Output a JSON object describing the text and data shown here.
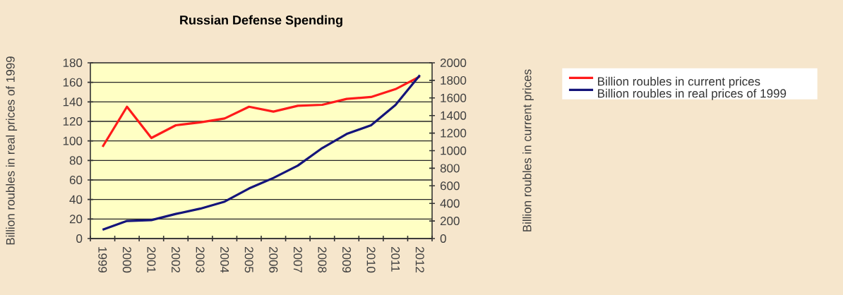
{
  "chart_data": {
    "type": "line",
    "title": "Russian Defense Spending",
    "ylabel": "Billion roubles in real prices of 1999",
    "y2label": "Billion roubles in current prices",
    "categories": [
      "1999",
      "2000",
      "2001",
      "2002",
      "2003",
      "2004",
      "2005",
      "2006",
      "2007",
      "2008",
      "2009",
      "2010",
      "2011",
      "2012"
    ],
    "series": [
      {
        "name": "Billion roubles in current prices",
        "color": "#ff1a1a",
        "values": [
          94,
          135,
          103,
          116,
          119,
          123,
          135,
          130,
          136,
          137,
          143,
          145,
          153,
          166
        ]
      },
      {
        "name": "Billion roubles in real prices of 1999",
        "color": "#14147a",
        "axis": "y2",
        "values": [
          100,
          200,
          210,
          280,
          340,
          420,
          570,
          690,
          830,
          1030,
          1190,
          1290,
          1520,
          1860
        ]
      }
    ],
    "ylim": [
      0,
      180
    ],
    "yticks": [
      0,
      20,
      40,
      60,
      80,
      100,
      120,
      140,
      160,
      180
    ],
    "y2lim": [
      0,
      2000
    ],
    "y2ticks": [
      0,
      200,
      400,
      600,
      800,
      1000,
      1200,
      1400,
      1600,
      1800,
      2000
    ],
    "grid": "y",
    "legend": "right",
    "marker": "none",
    "line_style": "solid"
  }
}
